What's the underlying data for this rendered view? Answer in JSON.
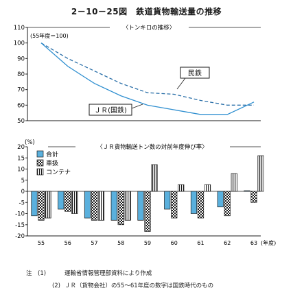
{
  "title": "2－10－25図　鉄道貨物輸送量の推移",
  "chart_data": [
    {
      "type": "line",
      "title": "〈トンキロの推移〉",
      "base_label": "(55年度＝100)",
      "x": [
        "55",
        "56",
        "57",
        "58",
        "59",
        "60",
        "61",
        "62",
        "63"
      ],
      "ylim": [
        50,
        110
      ],
      "yticks": [
        50,
        60,
        70,
        80,
        90,
        100,
        110
      ],
      "series": [
        {
          "name": "民鉄",
          "style": "dashed",
          "values": [
            100,
            90,
            82,
            74,
            68,
            67,
            63,
            60,
            60
          ]
        },
        {
          "name": "ＪＲ(国鉄)",
          "style": "solid",
          "values": [
            100,
            85,
            74,
            66,
            60,
            57,
            54,
            54,
            62
          ]
        }
      ]
    },
    {
      "type": "bar",
      "title": "〈ＪＲ貨物輸送トン数の対前年度伸び率〉",
      "ylabel": "(%)",
      "categories": [
        "55",
        "56",
        "57",
        "58",
        "59",
        "60",
        "61",
        "62",
        "63"
      ],
      "x_unit": "(年度)",
      "ylim": [
        -20,
        20
      ],
      "yticks": [
        -20,
        -15,
        -10,
        -5,
        0,
        5,
        10,
        15,
        20
      ],
      "series": [
        {
          "name": "合計",
          "pattern": "blue",
          "values": [
            -11,
            -8,
            -12,
            -13,
            -13,
            -8,
            -10,
            -7,
            0.3
          ]
        },
        {
          "name": "車扱",
          "pattern": "checker",
          "values": [
            -13,
            -9,
            -13,
            -15,
            -18,
            -12,
            -12,
            -11,
            -5
          ]
        },
        {
          "name": "コンテナ",
          "pattern": "vertical-lines",
          "values": [
            -12,
            -10,
            -13,
            -13,
            12,
            3,
            3,
            8,
            16
          ]
        }
      ]
    }
  ],
  "notes": [
    {
      "num": "注　(1)",
      "text": "運輸省情報管理部資料により作成"
    },
    {
      "num": "(2)",
      "text": "ＪＲ（貨物会社）の55～61年度の数字は国鉄時代のもの"
    }
  ],
  "colors": {
    "blue": "#5ab0dd",
    "line": "#1a1a1a"
  }
}
